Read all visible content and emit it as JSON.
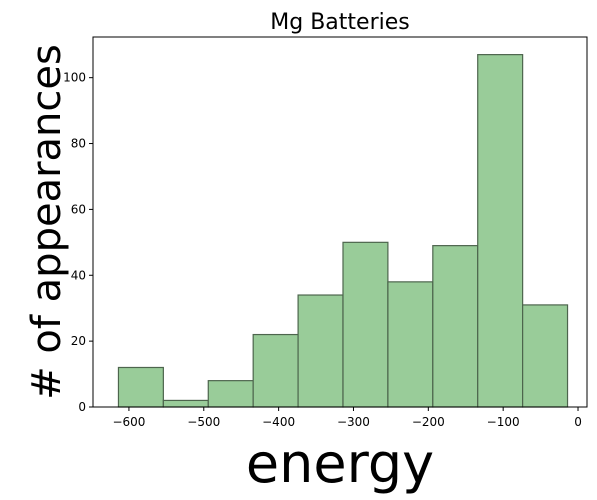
{
  "chart_data": {
    "type": "bar",
    "title": "Mg Batteries",
    "xlabel": "energy",
    "ylabel": "# of appearances",
    "bin_edges": [
      -614,
      -554,
      -494,
      -434,
      -374,
      -314,
      -254,
      -194,
      -134,
      -74,
      -14
    ],
    "values": [
      12,
      2,
      8,
      22,
      34,
      50,
      38,
      49,
      107,
      31
    ],
    "xlim": [
      -648,
      12
    ],
    "ylim": [
      0,
      112.35
    ],
    "xticks": [
      -600,
      -500,
      -400,
      -300,
      -200,
      -100,
      0
    ],
    "xtick_labels": [
      "−600",
      "−500",
      "−400",
      "−300",
      "−200",
      "−100",
      "0"
    ],
    "yticks": [
      0,
      20,
      40,
      60,
      80,
      100
    ],
    "ytick_labels": [
      "0",
      "20",
      "40",
      "60",
      "80",
      "100"
    ],
    "bar_color": "#99cc99",
    "edge_color": "#4d654d",
    "grid": false
  }
}
